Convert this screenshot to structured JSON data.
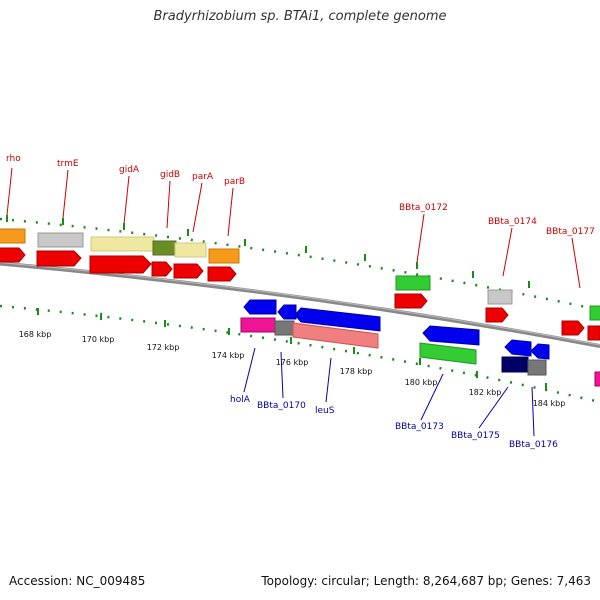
{
  "title": "Bradyrhizobium sp. BTAi1, complete genome",
  "footer": {
    "accession": "Accession: NC_009485",
    "stats": "Topology: circular; Length: 8,264,687 bp; Genes: 7,463"
  },
  "colors": {
    "forward_label": "#cc0000",
    "reverse_label": "#0000aa",
    "tick": "#1a8a1a",
    "backbone": "#888888"
  },
  "scale_ticks": [
    "168 kbp",
    "170 kbp",
    "172 kbp",
    "174 kbp",
    "176 kbp",
    "178 kbp",
    "180 kbp",
    "182 kbp",
    "184 kbp"
  ],
  "forward_labels": [
    "rho",
    "trmE",
    "gidA",
    "gidB",
    "parA",
    "parB",
    "BBta_0172",
    "BBta_0174",
    "BBta_0177"
  ],
  "reverse_labels": [
    "holA",
    "BBta_0170",
    "leuS",
    "BBta_0173",
    "BBta_0175",
    "BBta_0176"
  ]
}
